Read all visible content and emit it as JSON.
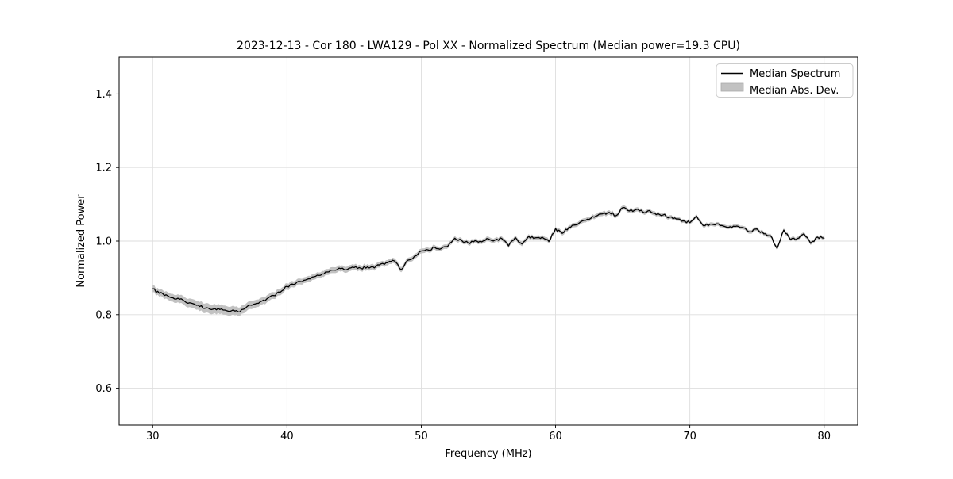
{
  "figure": {
    "title": "2023-12-13 - Cor 180 - LWA129 - Pol XX - Normalized Spectrum (Median power=19.3 CPU)",
    "xlabel": "Frequency (MHz)",
    "ylabel": "Normalized Power"
  },
  "legend": {
    "position": "upper right",
    "entries": [
      {
        "label": "Median Spectrum",
        "type": "line",
        "color": "#000000"
      },
      {
        "label": "Median Abs. Dev.",
        "type": "patch",
        "color": "#c2c2c2"
      }
    ]
  },
  "colors": {
    "line": "#000000",
    "band": "#c2c2c2",
    "band_edge": "#ababab",
    "grid": "#dedede",
    "frame": "#000000",
    "background": "#ffffff",
    "legend_border": "#cccccc",
    "legend_fill": "#ffffff"
  },
  "chart_data": {
    "type": "line",
    "title": "2023-12-13 - Cor 180 - LWA129 - Pol XX - Normalized Spectrum (Median power=19.3 CPU)",
    "xlabel": "Frequency (MHz)",
    "ylabel": "Normalized Power",
    "xlim": [
      27.5,
      82.5
    ],
    "ylim": [
      0.5,
      1.5
    ],
    "x_ticks": [
      30,
      40,
      50,
      60,
      70,
      80
    ],
    "y_ticks": [
      0.6,
      0.8,
      1.0,
      1.2,
      1.4
    ],
    "grid": true,
    "legend_position": "upper right",
    "texture_jitter": 0.0035,
    "series": [
      {
        "name": "Median Spectrum",
        "color": "#000000",
        "x_start": 30.0,
        "x_step": 0.5,
        "y": [
          0.87,
          0.858,
          0.854,
          0.846,
          0.842,
          0.833,
          0.83,
          0.822,
          0.819,
          0.815,
          0.814,
          0.811,
          0.813,
          0.808,
          0.821,
          0.828,
          0.835,
          0.843,
          0.852,
          0.861,
          0.877,
          0.882,
          0.89,
          0.896,
          0.903,
          0.907,
          0.916,
          0.921,
          0.925,
          0.923,
          0.928,
          0.926,
          0.93,
          0.927,
          0.938,
          0.941,
          0.946,
          0.922,
          0.948,
          0.959,
          0.973,
          0.976,
          0.983,
          0.98,
          0.987,
          1.008,
          1.002,
          0.995,
          1.001,
          0.998,
          1.006,
          1.003,
          1.007,
          0.987,
          1.01,
          0.992,
          1.013,
          1.009,
          1.011,
          0.999,
          1.034,
          1.021,
          1.038,
          1.044,
          1.055,
          1.059,
          1.068,
          1.074,
          1.078,
          1.069,
          1.091,
          1.082,
          1.086,
          1.079,
          1.083,
          1.072,
          1.071,
          1.065,
          1.06,
          1.055,
          1.05,
          1.068,
          1.042,
          1.046,
          1.047,
          1.041,
          1.039,
          1.041,
          1.036,
          1.025,
          1.033,
          1.02,
          1.015,
          0.98,
          1.03,
          1.004,
          1.007,
          1.02,
          0.994,
          1.011,
          1.008
        ]
      },
      {
        "name": "Median Abs. Dev.",
        "color": "#c2c2c2",
        "band_halfwidth": [
          [
            30,
            0.009
          ],
          [
            32,
            0.011
          ],
          [
            34,
            0.013
          ],
          [
            36,
            0.012
          ],
          [
            38,
            0.01
          ],
          [
            41,
            0.008
          ],
          [
            45,
            0.008
          ],
          [
            48,
            0.007
          ],
          [
            52,
            0.006
          ],
          [
            58,
            0.006
          ],
          [
            64,
            0.006
          ],
          [
            70,
            0.005
          ],
          [
            80,
            0.005
          ]
        ]
      }
    ]
  }
}
